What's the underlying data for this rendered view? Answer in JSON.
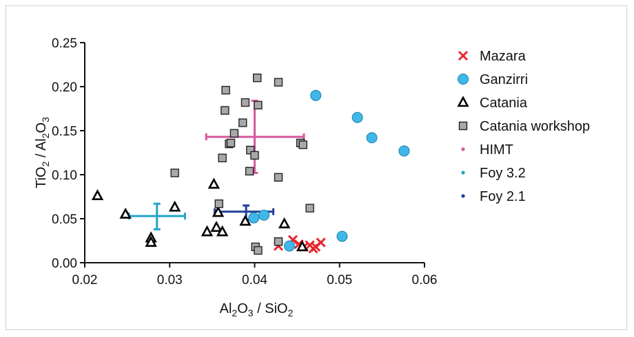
{
  "chart_data": {
    "type": "scatter",
    "xlabel": {
      "p1": "Al",
      "s1": "2",
      "p2": "O",
      "s2": "3",
      "p3": " / SiO",
      "s3": "2"
    },
    "ylabel": {
      "p1": "TiO",
      "s1": "2",
      "p2": " / Al",
      "s2": "2",
      "p3": "O",
      "s3": "3"
    },
    "xlim": [
      0.02,
      0.06
    ],
    "ylim": [
      0.0,
      0.25
    ],
    "xticks": [
      0.02,
      0.03,
      0.04,
      0.05,
      0.06
    ],
    "xtick_labels": [
      "0.02",
      "0.03",
      "0.04",
      "0.05",
      "0.06"
    ],
    "yticks": [
      0.0,
      0.05,
      0.1,
      0.15,
      0.2,
      0.25
    ],
    "ytick_labels": [
      "0.00",
      "0.05",
      "0.10",
      "0.15",
      "0.20",
      "0.25"
    ],
    "legend_position": "right",
    "series": [
      {
        "name": "Mazara",
        "marker": "x",
        "color": "#e8262e",
        "points": [
          [
            0.0428,
            0.019
          ],
          [
            0.0445,
            0.026
          ],
          [
            0.0452,
            0.021
          ],
          [
            0.0458,
            0.018
          ],
          [
            0.0465,
            0.02
          ],
          [
            0.0472,
            0.018
          ],
          [
            0.0478,
            0.023
          ],
          [
            0.0469,
            0.016
          ]
        ]
      },
      {
        "name": "Ganzirri",
        "marker": "circle",
        "color": "#3fb8e8",
        "points": [
          [
            0.0472,
            0.19
          ],
          [
            0.0521,
            0.165
          ],
          [
            0.0538,
            0.142
          ],
          [
            0.0576,
            0.127
          ],
          [
            0.0399,
            0.051
          ],
          [
            0.0411,
            0.054
          ],
          [
            0.0441,
            0.019
          ],
          [
            0.0503,
            0.03
          ]
        ]
      },
      {
        "name": "Catania",
        "marker": "triangle",
        "color": "#000000",
        "points": [
          [
            0.0215,
            0.076
          ],
          [
            0.0248,
            0.055
          ],
          [
            0.0278,
            0.028
          ],
          [
            0.0278,
            0.023
          ],
          [
            0.0306,
            0.063
          ],
          [
            0.0344,
            0.035
          ],
          [
            0.0352,
            0.089
          ],
          [
            0.0355,
            0.04
          ],
          [
            0.0362,
            0.035
          ],
          [
            0.0357,
            0.057
          ],
          [
            0.0389,
            0.047
          ],
          [
            0.0435,
            0.044
          ],
          [
            0.0456,
            0.018
          ]
        ]
      },
      {
        "name": "Catania workshop",
        "marker": "square",
        "color": "#a9a9a9",
        "points": [
          [
            0.0306,
            0.102
          ],
          [
            0.0366,
            0.196
          ],
          [
            0.0365,
            0.173
          ],
          [
            0.037,
            0.135
          ],
          [
            0.0372,
            0.136
          ],
          [
            0.0376,
            0.147
          ],
          [
            0.0362,
            0.119
          ],
          [
            0.0386,
            0.159
          ],
          [
            0.0389,
            0.182
          ],
          [
            0.0395,
            0.128
          ],
          [
            0.0394,
            0.104
          ],
          [
            0.04,
            0.122
          ],
          [
            0.0403,
            0.21
          ],
          [
            0.0404,
            0.179
          ],
          [
            0.0428,
            0.205
          ],
          [
            0.0428,
            0.097
          ],
          [
            0.0454,
            0.136
          ],
          [
            0.0457,
            0.134
          ],
          [
            0.0465,
            0.062
          ],
          [
            0.0358,
            0.067
          ],
          [
            0.0401,
            0.018
          ],
          [
            0.0404,
            0.014
          ],
          [
            0.0428,
            0.024
          ]
        ]
      },
      {
        "name": "HIMT",
        "marker": "errorbar",
        "color": "#d6579f",
        "points": [
          [
            0.04,
            0.143
          ]
        ],
        "x_err": [
          0.0343,
          0.0458
        ],
        "y_err": [
          0.102,
          0.184
        ]
      },
      {
        "name": "Foy 3.2",
        "marker": "errorbar",
        "color": "#22a3c8",
        "points": [
          [
            0.0285,
            0.053
          ]
        ],
        "x_err": [
          0.0252,
          0.0318
        ],
        "y_err": [
          0.038,
          0.067
        ]
      },
      {
        "name": "Foy 2.1",
        "marker": "errorbar",
        "color": "#1f3f99",
        "points": [
          [
            0.039,
            0.058
          ]
        ],
        "x_err": [
          0.0353,
          0.0422
        ],
        "y_err": [
          0.049,
          0.065
        ]
      }
    ]
  }
}
